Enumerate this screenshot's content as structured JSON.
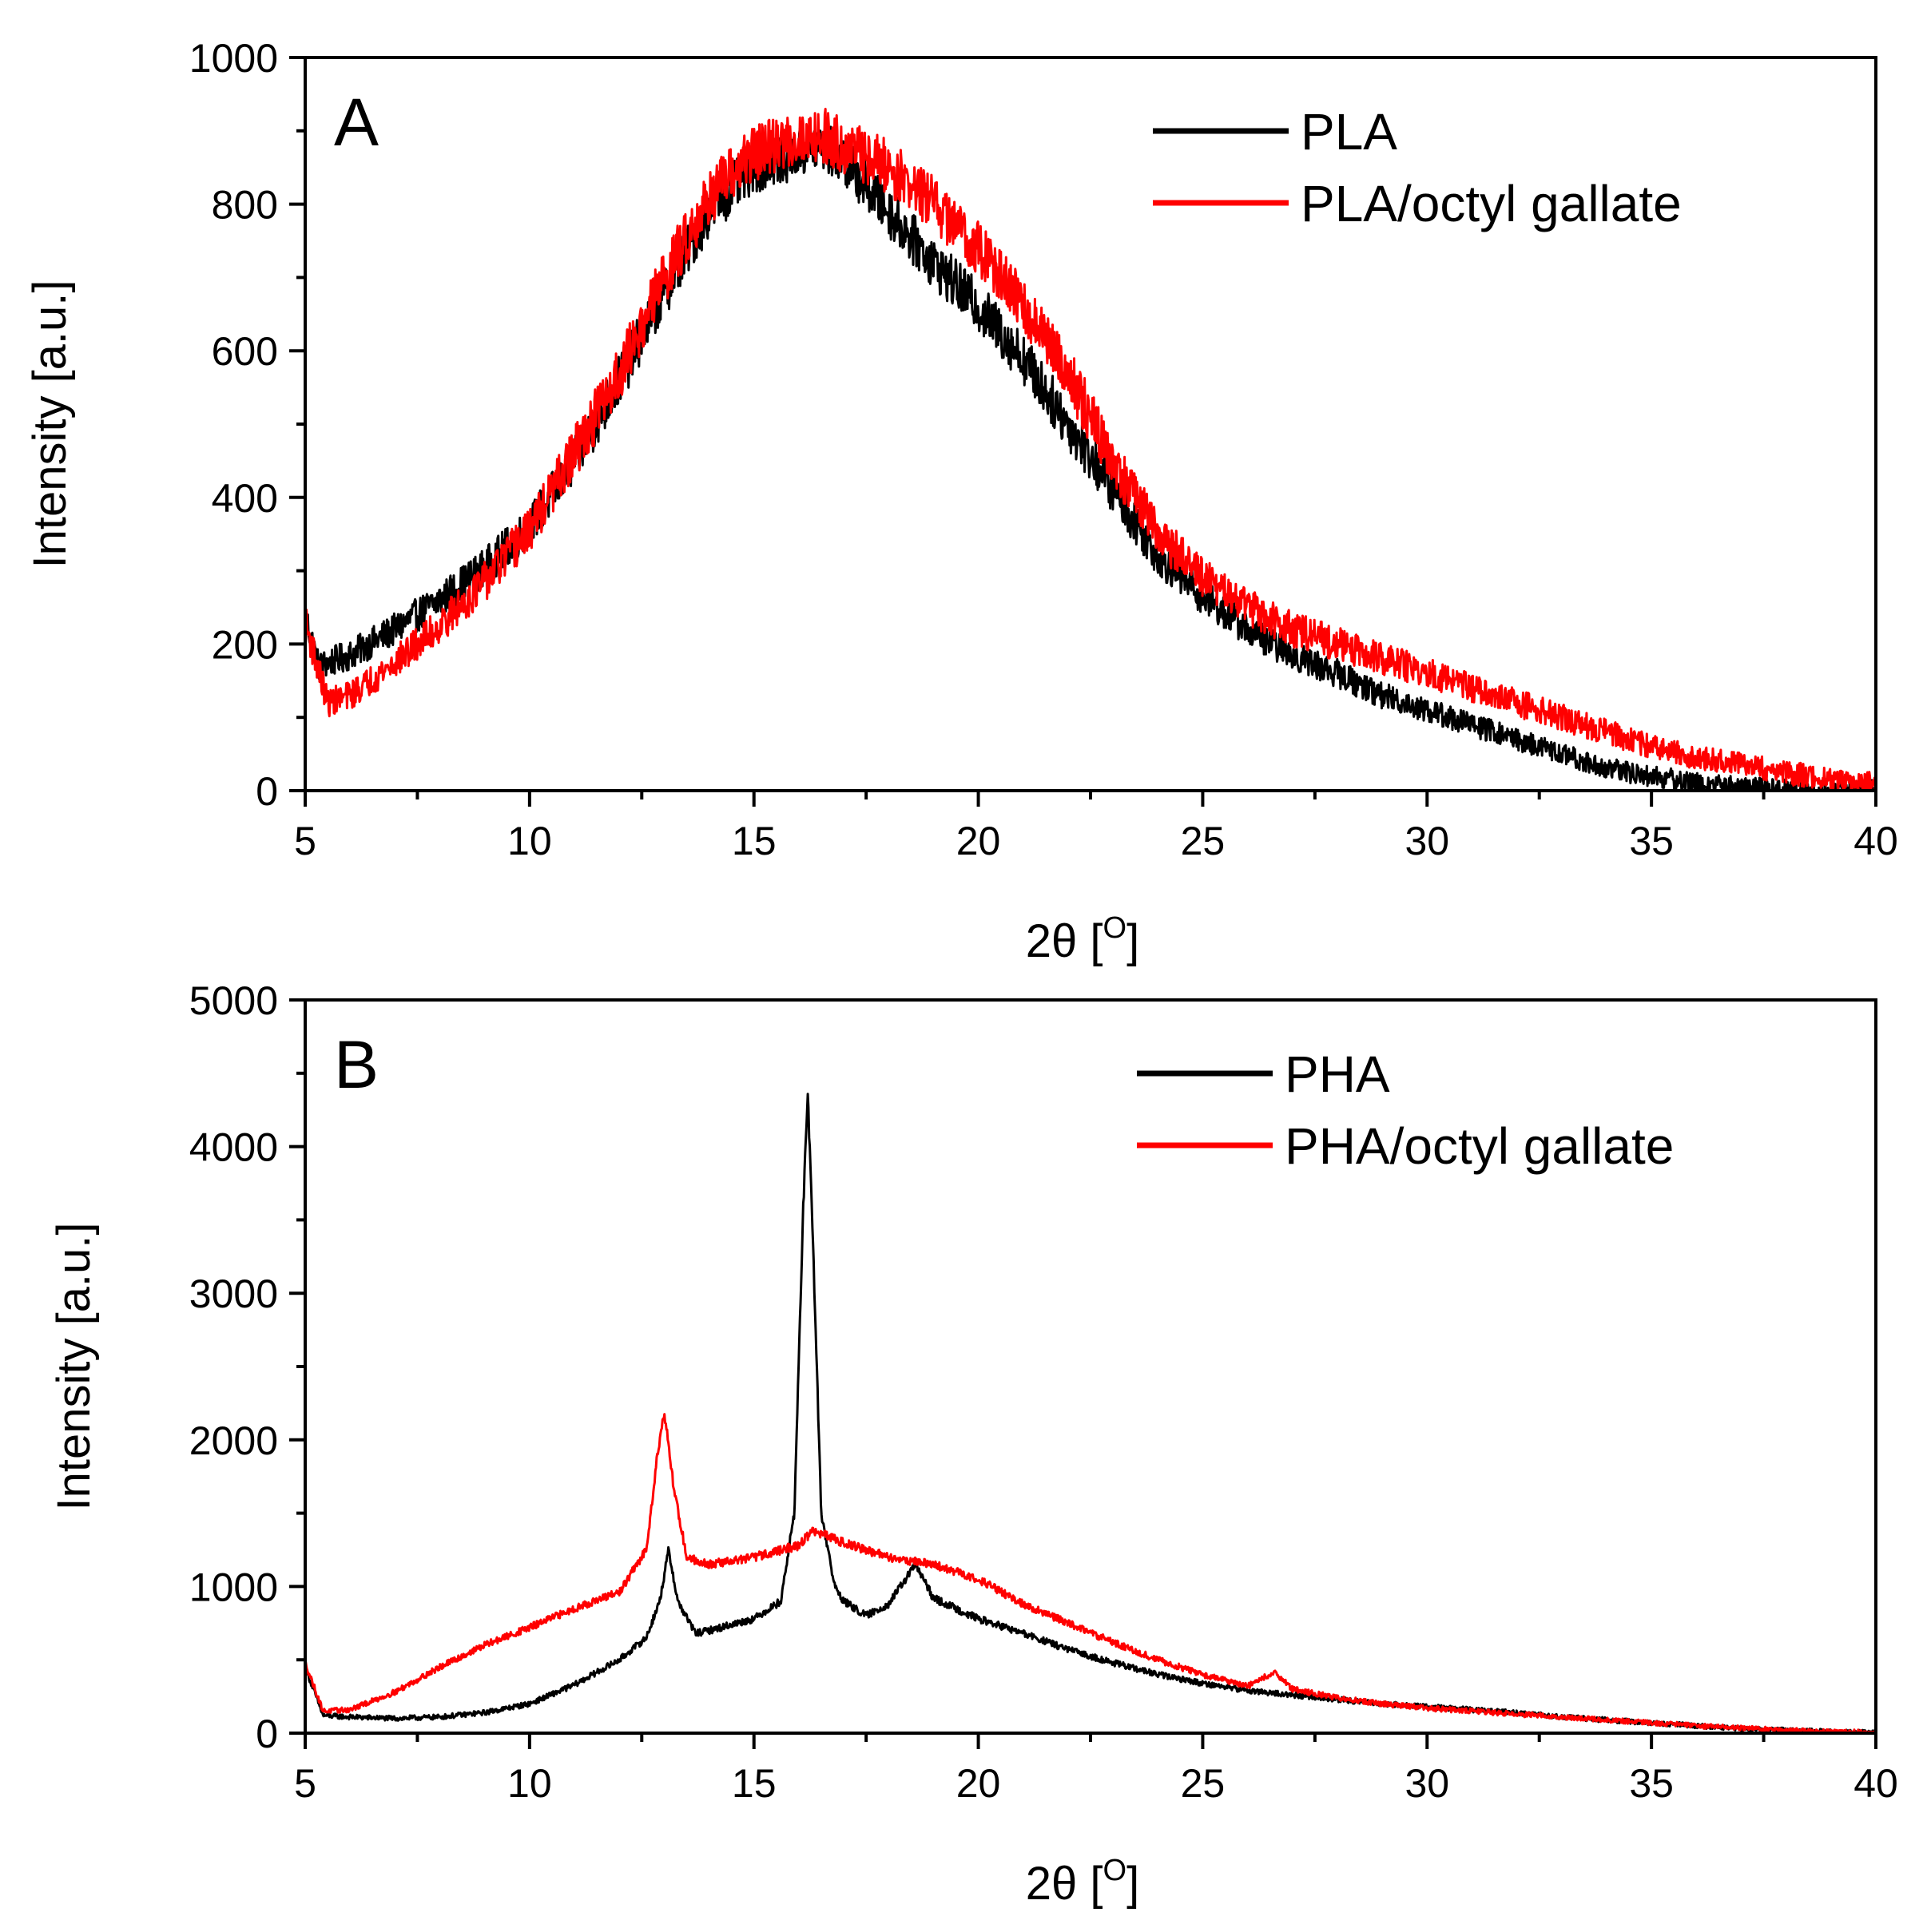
{
  "chart_data": [
    {
      "type": "line",
      "panel_label": "A",
      "xlabel": "2θ [",
      "xlabel_sup": "O",
      "xlabel_close": "]",
      "ylabel": "Intensity [a.u.]",
      "xlim": [
        5,
        40
      ],
      "ylim": [
        0,
        1000
      ],
      "xticks": [
        5,
        10,
        15,
        20,
        25,
        30,
        35,
        40
      ],
      "yticks": [
        0,
        200,
        400,
        600,
        800,
        1000
      ],
      "legend_position": "top-right",
      "series": [
        {
          "name": "PLA",
          "color": "#000000",
          "noise": 35,
          "x": [
            5,
            5.3,
            6,
            7,
            8,
            9,
            10,
            11,
            12,
            13,
            14,
            15,
            16,
            16.5,
            17,
            18,
            19,
            20,
            21,
            22,
            23,
            24,
            25,
            26,
            27,
            28,
            29,
            30,
            31,
            32,
            33,
            34,
            35,
            36,
            37,
            38,
            39,
            40
          ],
          "y": [
            240,
            170,
            185,
            220,
            260,
            305,
            360,
            450,
            560,
            680,
            790,
            850,
            870,
            880,
            860,
            790,
            720,
            660,
            590,
            500,
            410,
            320,
            265,
            220,
            185,
            160,
            130,
            110,
            90,
            70,
            50,
            30,
            20,
            10,
            5,
            0,
            0,
            0
          ]
        },
        {
          "name": "PLA/octyl gallate",
          "color": "#ff0000",
          "noise": 38,
          "x": [
            5,
            5.5,
            6,
            7,
            8,
            9,
            10,
            11,
            12,
            13,
            14,
            15,
            16,
            16.5,
            17,
            18,
            19,
            20,
            21,
            22,
            23,
            24,
            25,
            26,
            27,
            28,
            29,
            30,
            31,
            32,
            33,
            34,
            35,
            36,
            37,
            38,
            39,
            40
          ],
          "y": [
            230,
            120,
            130,
            175,
            225,
            285,
            355,
            460,
            570,
            700,
            810,
            870,
            890,
            895,
            880,
            850,
            800,
            740,
            660,
            570,
            450,
            350,
            290,
            250,
            220,
            200,
            180,
            160,
            140,
            120,
            100,
            80,
            60,
            45,
            35,
            25,
            15,
            10
          ]
        }
      ]
    },
    {
      "type": "line",
      "panel_label": "B",
      "xlabel": "2θ [",
      "xlabel_sup": "O",
      "xlabel_close": "]",
      "ylabel": "Intensity [a.u.]",
      "xlim": [
        5,
        40
      ],
      "ylim": [
        0,
        5000
      ],
      "xticks": [
        5,
        10,
        15,
        20,
        25,
        30,
        35,
        40
      ],
      "yticks": [
        0,
        1000,
        2000,
        3000,
        4000,
        5000
      ],
      "legend_position": "top-right",
      "series": [
        {
          "name": "PHA",
          "color": "#000000",
          "noise": 45,
          "x": [
            5,
            5.4,
            6,
            7,
            8,
            9,
            10,
            11,
            12,
            12.6,
            12.9,
            13.1,
            13.3,
            13.7,
            14,
            15,
            15.6,
            15.9,
            16.1,
            16.2,
            16.3,
            16.5,
            16.8,
            17,
            17.5,
            18,
            18.6,
            19,
            20,
            21,
            22,
            23,
            24,
            25,
            26,
            27,
            28,
            29,
            30,
            31,
            32,
            33,
            34,
            35,
            36,
            37,
            38,
            39,
            40
          ],
          "y": [
            450,
            120,
            110,
            100,
            110,
            140,
            200,
            330,
            500,
            650,
            900,
            1250,
            900,
            680,
            700,
            780,
            900,
            1500,
            3600,
            4350,
            3500,
            1500,
            1000,
            900,
            800,
            880,
            1150,
            920,
            780,
            680,
            570,
            480,
            400,
            340,
            290,
            260,
            230,
            200,
            180,
            160,
            140,
            110,
            90,
            70,
            50,
            30,
            20,
            10,
            5
          ]
        },
        {
          "name": "PHA/octyl gallate",
          "color": "#ff0000",
          "noise": 45,
          "x": [
            5,
            5.4,
            6,
            7,
            8,
            9,
            10,
            11,
            12,
            12.6,
            12.85,
            13,
            13.2,
            13.5,
            14,
            15,
            16,
            16.3,
            17,
            18,
            19,
            20,
            21,
            22,
            23,
            24,
            25,
            26,
            26.6,
            27,
            28,
            29,
            30,
            31,
            32,
            33,
            34,
            35,
            36,
            37,
            38,
            39,
            40
          ],
          "y": [
            480,
            150,
            160,
            280,
            450,
            600,
            720,
            850,
            960,
            1250,
            1900,
            2200,
            1700,
            1200,
            1150,
            1200,
            1280,
            1380,
            1300,
            1200,
            1150,
            1050,
            880,
            750,
            620,
            500,
            400,
            320,
            420,
            300,
            240,
            200,
            170,
            150,
            130,
            110,
            90,
            70,
            50,
            35,
            20,
            10,
            5
          ]
        }
      ]
    }
  ]
}
